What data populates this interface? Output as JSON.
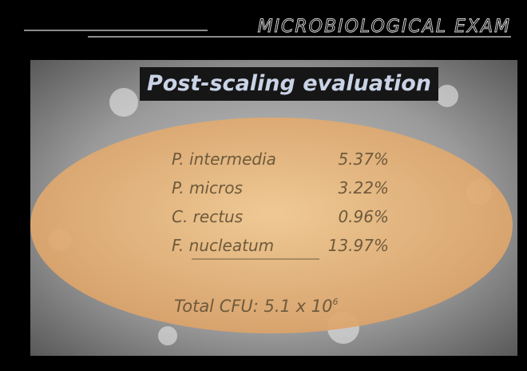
{
  "header": {
    "title": "MICROBIOLOGICAL EXAM"
  },
  "slide": {
    "title": "Post-scaling evaluation",
    "rows": [
      {
        "name": "P. intermedia",
        "value": "5.37%"
      },
      {
        "name": "P. micros",
        "value": "3.22%"
      },
      {
        "name": "C. rectus",
        "value": "0.96%"
      },
      {
        "name": "F. nucleatum",
        "value": "13.97%"
      }
    ],
    "total": {
      "text": "Total CFU: 5.1 x 10",
      "exponent": "6"
    }
  }
}
